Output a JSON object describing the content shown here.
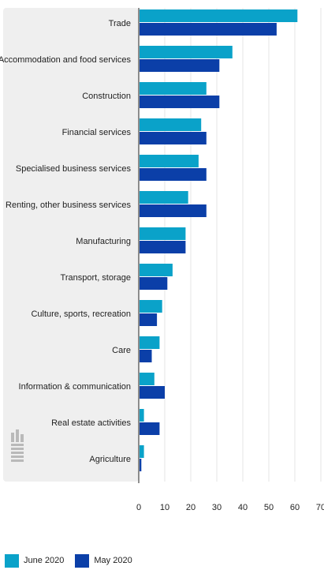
{
  "chart_data": {
    "type": "bar",
    "orientation": "horizontal",
    "categories": [
      "Trade",
      "Accommodation and food services",
      "Construction",
      "Financial services",
      "Specialised business services",
      "Renting, other business services",
      "Manufacturing",
      "Transport, storage",
      "Culture, sports, recreation",
      "Care",
      "Information & communication",
      "Real estate activities",
      "Agriculture"
    ],
    "series": [
      {
        "name": "June 2020",
        "color": "#0aa2c9",
        "values": [
          61,
          36,
          26,
          24,
          23,
          19,
          18,
          13,
          9,
          8,
          6,
          2,
          2
        ]
      },
      {
        "name": "May 2020",
        "color": "#0b3fa8",
        "values": [
          53,
          31,
          31,
          26,
          26,
          26,
          18,
          11,
          7,
          5,
          10,
          8,
          1
        ]
      }
    ],
    "x_ticks": [
      "0",
      "10",
      "20",
      "30",
      "40",
      "50",
      "60",
      "70"
    ],
    "xlim": [
      0,
      70
    ],
    "grid": true,
    "legend_position": "bottom-left",
    "watermark_logo": "cbs-logo"
  }
}
